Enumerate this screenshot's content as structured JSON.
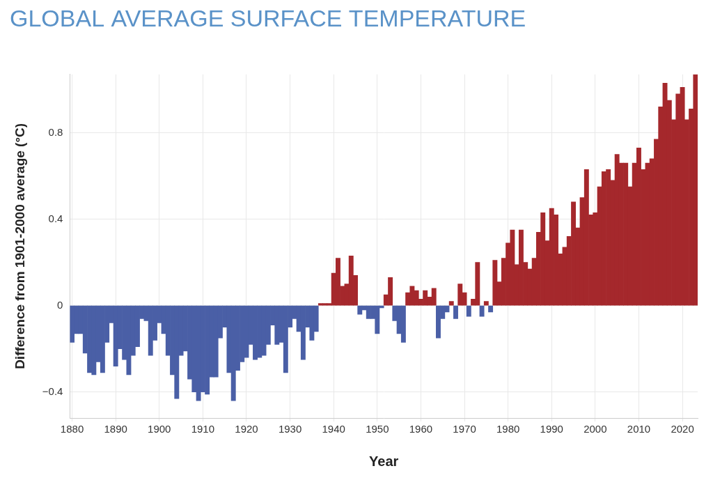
{
  "chart_data": {
    "type": "bar",
    "title": "GLOBAL AVERAGE SURFACE TEMPERATURE",
    "x_label": "Year",
    "y_label": "Difference from 1901-2000 average (°C)",
    "categories": [
      "1880",
      null,
      null,
      null,
      null,
      null,
      null,
      null,
      null,
      null,
      "1890",
      null,
      null,
      null,
      null,
      null,
      null,
      null,
      null,
      null,
      "1900",
      null,
      null,
      null,
      null,
      null,
      null,
      null,
      null,
      null,
      "1910",
      null,
      null,
      null,
      null,
      null,
      null,
      null,
      null,
      null,
      "1920",
      null,
      null,
      null,
      null,
      null,
      null,
      null,
      null,
      null,
      "1930",
      null,
      null,
      null,
      null,
      null,
      null,
      null,
      null,
      null,
      "1940",
      null,
      null,
      null,
      null,
      null,
      null,
      null,
      null,
      null,
      "1950",
      null,
      null,
      null,
      null,
      null,
      null,
      null,
      null,
      null,
      "1960",
      null,
      null,
      null,
      null,
      null,
      null,
      null,
      null,
      null,
      "1970",
      null,
      null,
      null,
      null,
      null,
      null,
      null,
      null,
      null,
      "1980",
      null,
      null,
      null,
      null,
      null,
      null,
      null,
      null,
      null,
      "1990",
      null,
      null,
      null,
      null,
      null,
      null,
      null,
      null,
      null,
      "2000",
      null,
      null,
      null,
      null,
      null,
      null,
      null,
      null,
      null,
      "2010",
      null,
      null,
      null,
      null,
      null,
      null,
      null,
      null,
      null,
      "2020",
      null,
      null,
      null
    ],
    "values": [
      -0.17,
      -0.13,
      -0.13,
      -0.22,
      -0.31,
      -0.32,
      -0.26,
      -0.31,
      -0.17,
      -0.08,
      -0.28,
      -0.2,
      -0.25,
      -0.32,
      -0.23,
      -0.19,
      -0.06,
      -0.07,
      -0.23,
      -0.16,
      -0.08,
      -0.13,
      -0.23,
      -0.32,
      -0.43,
      -0.23,
      -0.21,
      -0.34,
      -0.4,
      -0.44,
      -0.4,
      -0.41,
      -0.33,
      -0.33,
      -0.15,
      -0.1,
      -0.31,
      -0.44,
      -0.3,
      -0.26,
      -0.24,
      -0.18,
      -0.25,
      -0.24,
      -0.23,
      -0.18,
      -0.09,
      -0.18,
      -0.17,
      -0.31,
      -0.1,
      -0.06,
      -0.12,
      -0.25,
      -0.1,
      -0.16,
      -0.12,
      0.01,
      0.01,
      0.01,
      0.15,
      0.22,
      0.09,
      0.1,
      0.23,
      0.14,
      -0.04,
      -0.02,
      -0.06,
      -0.06,
      -0.13,
      -0.01,
      0.05,
      0.13,
      -0.07,
      -0.13,
      -0.17,
      0.06,
      0.09,
      0.07,
      0.03,
      0.07,
      0.04,
      0.08,
      -0.15,
      -0.06,
      -0.03,
      0.02,
      -0.06,
      0.1,
      0.06,
      -0.05,
      0.03,
      0.2,
      -0.05,
      0.02,
      -0.03,
      0.21,
      0.11,
      0.22,
      0.29,
      0.35,
      0.19,
      0.35,
      0.2,
      0.17,
      0.22,
      0.34,
      0.43,
      0.3,
      0.45,
      0.42,
      0.24,
      0.27,
      0.32,
      0.48,
      0.36,
      0.5,
      0.63,
      0.42,
      0.43,
      0.55,
      0.62,
      0.63,
      0.58,
      0.7,
      0.66,
      0.66,
      0.55,
      0.66,
      0.73,
      0.63,
      0.66,
      0.68,
      0.77,
      0.92,
      1.03,
      0.95,
      0.86,
      0.98,
      1.01,
      0.86,
      0.91,
      1.07
    ],
    "colors": [
      "#4a5fa6",
      "#4a5fa6",
      "#4a5fa6",
      "#4a5fa6",
      "#4a5fa6",
      "#4a5fa6",
      "#4a5fa6",
      "#4a5fa6",
      "#4a5fa6",
      "#4a5fa6",
      "#4a5fa6",
      "#4a5fa6",
      "#4a5fa6",
      "#4a5fa6",
      "#4a5fa6",
      "#4a5fa6",
      "#4a5fa6",
      "#4a5fa6",
      "#4a5fa6",
      "#4a5fa6",
      "#4a5fa6",
      "#4a5fa6",
      "#4a5fa6",
      "#4a5fa6",
      "#4a5fa6",
      "#4a5fa6",
      "#4a5fa6",
      "#4a5fa6",
      "#4a5fa6",
      "#4a5fa6",
      "#4a5fa6",
      "#4a5fa6",
      "#4a5fa6",
      "#4a5fa6",
      "#4a5fa6",
      "#4a5fa6",
      "#4a5fa6",
      "#4a5fa6",
      "#4a5fa6",
      "#4a5fa6",
      "#4a5fa6",
      "#4a5fa6",
      "#4a5fa6",
      "#4a5fa6",
      "#4a5fa6",
      "#4a5fa6",
      "#4a5fa6",
      "#4a5fa6",
      "#4a5fa6",
      "#4a5fa6",
      "#4a5fa6",
      "#4a5fa6",
      "#4a5fa6",
      "#4a5fa6",
      "#4a5fa6",
      "#4a5fa6",
      "#4a5fa6",
      "#a5282c",
      "#a5282c",
      "#a5282c",
      "#a5282c",
      "#a5282c",
      "#a5282c",
      "#a5282c",
      "#a5282c",
      "#a5282c",
      "#4a5fa6",
      "#4a5fa6",
      "#4a5fa6",
      "#4a5fa6",
      "#4a5fa6",
      "#4a5fa6",
      "#a5282c",
      "#a5282c",
      "#4a5fa6",
      "#4a5fa6",
      "#4a5fa6",
      "#a5282c",
      "#a5282c",
      "#a5282c",
      "#a5282c",
      "#a5282c",
      "#a5282c",
      "#a5282c",
      "#4a5fa6",
      "#4a5fa6",
      "#4a5fa6",
      "#a5282c",
      "#4a5fa6",
      "#a5282c",
      "#a5282c",
      "#4a5fa6",
      "#a5282c",
      "#a5282c",
      "#4a5fa6",
      "#a5282c",
      "#4a5fa6",
      "#a5282c",
      "#a5282c",
      "#a5282c",
      "#a5282c",
      "#a5282c",
      "#a5282c",
      "#a5282c",
      "#a5282c",
      "#a5282c",
      "#a5282c",
      "#a5282c",
      "#a5282c",
      "#a5282c",
      "#a5282c",
      "#a5282c",
      "#a5282c",
      "#a5282c",
      "#a5282c",
      "#a5282c",
      "#a5282c",
      "#a5282c",
      "#a5282c",
      "#a5282c",
      "#a5282c",
      "#a5282c",
      "#a5282c",
      "#a5282c",
      "#a5282c",
      "#a5282c",
      "#a5282c",
      "#a5282c",
      "#a5282c",
      "#a5282c",
      "#a5282c",
      "#a5282c",
      "#a5282c",
      "#a5282c",
      "#a5282c",
      "#a5282c",
      "#a5282c",
      "#a5282c",
      "#a5282c",
      "#a5282c",
      "#a5282c",
      "#a5282c",
      "#a5282c",
      "#a5282c"
    ],
    "ylim": [
      -0.52,
      1.07
    ],
    "yticks": [
      {
        "value": -0.4,
        "label": "−0.4"
      },
      0,
      0.4,
      0.8
    ],
    "grid": true
  }
}
